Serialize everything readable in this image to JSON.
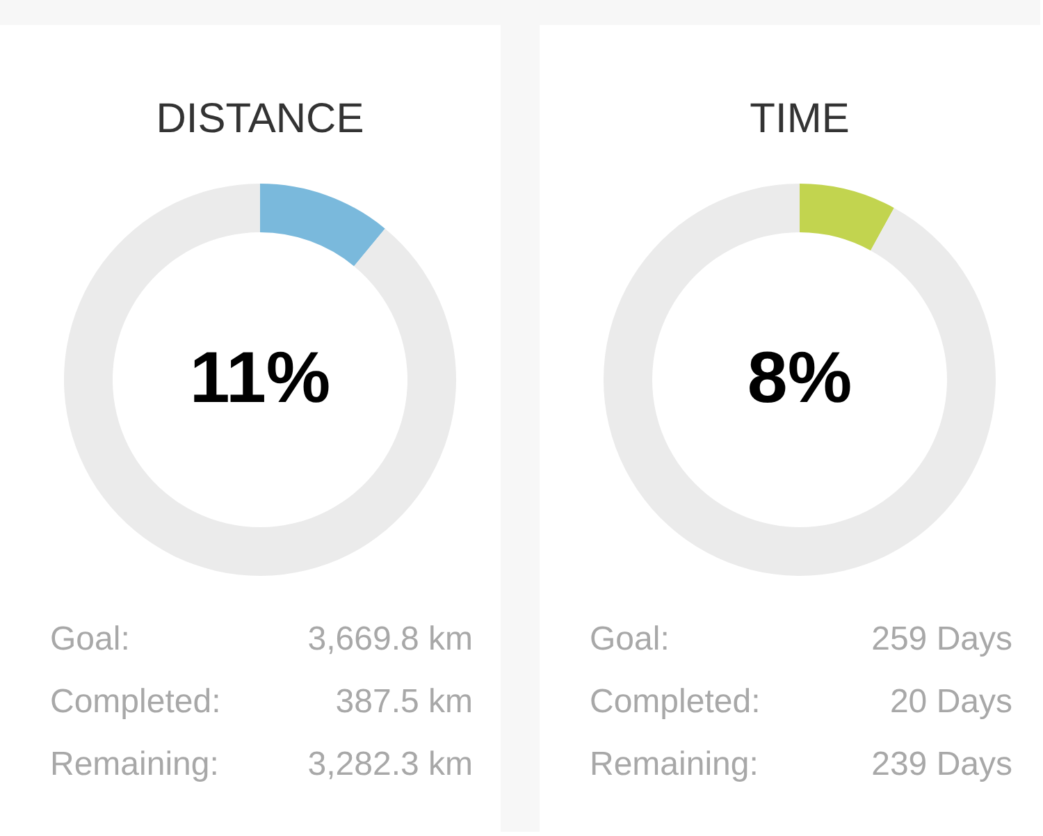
{
  "chart_data": [
    {
      "type": "donut",
      "title": "DISTANCE",
      "categories": [
        null,
        null
      ],
      "values": [
        11,
        89
      ],
      "colors": [
        "#7ab9dc",
        "#ebebeb"
      ],
      "value_labels": [
        "11%",
        null
      ],
      "annotations": [
        "Goal:",
        "3,669.8 km",
        "Completed:",
        "387.5 km",
        "Remaining:",
        "3,282.3 km"
      ]
    },
    {
      "type": "donut",
      "title": "TIME",
      "categories": [
        null,
        null
      ],
      "values": [
        8,
        92
      ],
      "colors": [
        "#c2d44f",
        "#ebebeb"
      ],
      "value_labels": [
        "8%",
        null
      ],
      "annotations": [
        "Goal:",
        "259 Days",
        "Completed:",
        "20 Days",
        "Remaining:",
        "239 Days"
      ]
    }
  ]
}
